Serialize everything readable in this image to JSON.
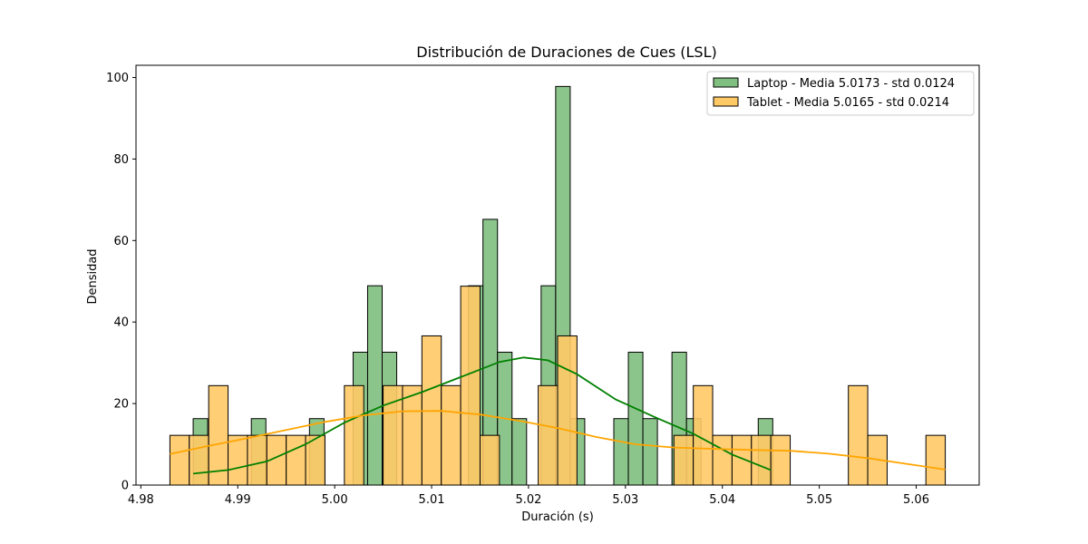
{
  "chart_data": {
    "type": "histogram",
    "title": "Distribución de Duraciones de Cues (LSL)",
    "xlabel": "Duración (s)",
    "ylabel": "Densidad",
    "xlim": [
      4.9795,
      5.0665
    ],
    "ylim": [
      0,
      103
    ],
    "x_ticks": [
      "4.98",
      "4.99",
      "5.00",
      "5.01",
      "5.02",
      "5.03",
      "5.04",
      "5.05",
      "5.06"
    ],
    "x_tick_values": [
      4.98,
      4.99,
      5.0,
      5.01,
      5.02,
      5.03,
      5.04,
      5.05,
      5.06
    ],
    "y_ticks": [
      "0",
      "20",
      "40",
      "60",
      "80",
      "100"
    ],
    "y_tick_values": [
      0,
      20,
      40,
      60,
      80,
      100
    ],
    "grid": false,
    "legend_position": "top-right",
    "series": [
      {
        "name": "Laptop - Media 5.0173 - std 0.0124",
        "fill": "#7fbf7f",
        "line": "#008000",
        "bins": [
          {
            "x0": 4.9854,
            "x1": 4.9869,
            "y": 16.3
          },
          {
            "x0": 4.9914,
            "x1": 4.9929,
            "y": 16.3
          },
          {
            "x0": 4.9974,
            "x1": 4.9989,
            "y": 16.3
          },
          {
            "x0": 5.0019,
            "x1": 5.0034,
            "y": 32.6
          },
          {
            "x0": 5.0034,
            "x1": 5.0049,
            "y": 48.9
          },
          {
            "x0": 5.0049,
            "x1": 5.0064,
            "y": 32.6
          },
          {
            "x0": 5.0138,
            "x1": 5.0153,
            "y": 48.9
          },
          {
            "x0": 5.0153,
            "x1": 5.0168,
            "y": 65.2
          },
          {
            "x0": 5.0168,
            "x1": 5.0183,
            "y": 32.6
          },
          {
            "x0": 5.0183,
            "x1": 5.0198,
            "y": 16.3
          },
          {
            "x0": 5.0213,
            "x1": 5.0228,
            "y": 48.9
          },
          {
            "x0": 5.0228,
            "x1": 5.0243,
            "y": 97.8
          },
          {
            "x0": 5.0243,
            "x1": 5.0258,
            "y": 16.3
          },
          {
            "x0": 5.0288,
            "x1": 5.0303,
            "y": 16.3
          },
          {
            "x0": 5.0303,
            "x1": 5.0318,
            "y": 32.6
          },
          {
            "x0": 5.0318,
            "x1": 5.0333,
            "y": 16.3
          },
          {
            "x0": 5.0348,
            "x1": 5.0363,
            "y": 32.6
          },
          {
            "x0": 5.0363,
            "x1": 5.0378,
            "y": 16.3
          },
          {
            "x0": 5.0437,
            "x1": 5.0452,
            "y": 16.3
          }
        ],
        "kde": [
          {
            "x": 4.9854,
            "y": 2.8
          },
          {
            "x": 4.989,
            "y": 3.7
          },
          {
            "x": 4.993,
            "y": 5.8
          },
          {
            "x": 4.997,
            "y": 10.0
          },
          {
            "x": 5.001,
            "y": 15.3
          },
          {
            "x": 5.005,
            "y": 19.5
          },
          {
            "x": 5.009,
            "y": 22.8
          },
          {
            "x": 5.013,
            "y": 26.5
          },
          {
            "x": 5.017,
            "y": 30.2
          },
          {
            "x": 5.0195,
            "y": 31.3
          },
          {
            "x": 5.022,
            "y": 30.6
          },
          {
            "x": 5.025,
            "y": 27.2
          },
          {
            "x": 5.029,
            "y": 21.0
          },
          {
            "x": 5.033,
            "y": 16.7
          },
          {
            "x": 5.037,
            "y": 12.6
          },
          {
            "x": 5.041,
            "y": 7.5
          },
          {
            "x": 5.045,
            "y": 3.7
          }
        ]
      },
      {
        "name": "Tablet - Media 5.0165 - std 0.0214",
        "fill": "#ffc966",
        "line": "#ffa500",
        "bins": [
          {
            "x0": 4.983,
            "x1": 4.985,
            "y": 12.2
          },
          {
            "x0": 4.985,
            "x1": 4.987,
            "y": 12.2
          },
          {
            "x0": 4.987,
            "x1": 4.989,
            "y": 24.4
          },
          {
            "x0": 4.989,
            "x1": 4.991,
            "y": 12.2
          },
          {
            "x0": 4.991,
            "x1": 4.993,
            "y": 12.2
          },
          {
            "x0": 4.993,
            "x1": 4.995,
            "y": 12.2
          },
          {
            "x0": 4.995,
            "x1": 4.997,
            "y": 12.2
          },
          {
            "x0": 4.997,
            "x1": 4.999,
            "y": 12.2
          },
          {
            "x0": 5.001,
            "x1": 5.003,
            "y": 24.4
          },
          {
            "x0": 5.005,
            "x1": 5.007,
            "y": 24.4
          },
          {
            "x0": 5.007,
            "x1": 5.009,
            "y": 24.4
          },
          {
            "x0": 5.009,
            "x1": 5.011,
            "y": 36.6
          },
          {
            "x0": 5.011,
            "x1": 5.013,
            "y": 24.4
          },
          {
            "x0": 5.013,
            "x1": 5.015,
            "y": 48.8
          },
          {
            "x0": 5.015,
            "x1": 5.017,
            "y": 12.2
          },
          {
            "x0": 5.021,
            "x1": 5.023,
            "y": 24.4
          },
          {
            "x0": 5.023,
            "x1": 5.025,
            "y": 36.6
          },
          {
            "x0": 5.035,
            "x1": 5.037,
            "y": 12.2
          },
          {
            "x0": 5.037,
            "x1": 5.039,
            "y": 24.4
          },
          {
            "x0": 5.039,
            "x1": 5.041,
            "y": 12.2
          },
          {
            "x0": 5.041,
            "x1": 5.043,
            "y": 12.2
          },
          {
            "x0": 5.043,
            "x1": 5.045,
            "y": 12.2
          },
          {
            "x0": 5.045,
            "x1": 5.047,
            "y": 12.2
          },
          {
            "x0": 5.053,
            "x1": 5.055,
            "y": 24.4
          },
          {
            "x0": 5.055,
            "x1": 5.057,
            "y": 12.2
          },
          {
            "x0": 5.061,
            "x1": 5.063,
            "y": 12.2
          }
        ],
        "kde": [
          {
            "x": 4.983,
            "y": 7.6
          },
          {
            "x": 4.987,
            "y": 9.6
          },
          {
            "x": 4.991,
            "y": 11.5
          },
          {
            "x": 4.995,
            "y": 13.5
          },
          {
            "x": 4.999,
            "y": 15.5
          },
          {
            "x": 5.003,
            "y": 17.1
          },
          {
            "x": 5.007,
            "y": 18.1
          },
          {
            "x": 5.011,
            "y": 18.2
          },
          {
            "x": 5.015,
            "y": 17.3
          },
          {
            "x": 5.019,
            "y": 15.8
          },
          {
            "x": 5.023,
            "y": 14.0
          },
          {
            "x": 5.027,
            "y": 11.8
          },
          {
            "x": 5.031,
            "y": 10.0
          },
          {
            "x": 5.035,
            "y": 9.2
          },
          {
            "x": 5.039,
            "y": 8.9
          },
          {
            "x": 5.043,
            "y": 8.6
          },
          {
            "x": 5.047,
            "y": 8.4
          },
          {
            "x": 5.051,
            "y": 7.7
          },
          {
            "x": 5.055,
            "y": 6.6
          },
          {
            "x": 5.059,
            "y": 5.2
          },
          {
            "x": 5.063,
            "y": 3.8
          }
        ]
      }
    ]
  }
}
